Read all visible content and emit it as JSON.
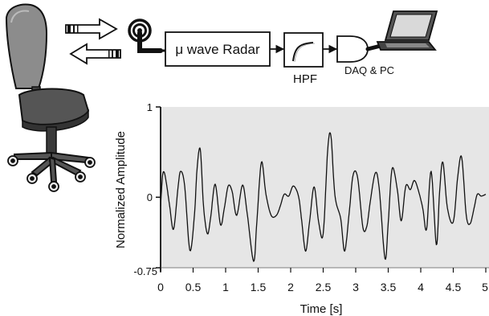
{
  "diagram": {
    "radar_label": "μ wave Radar",
    "filter_label": "HPF",
    "daq_label": "DAQ & PC"
  },
  "chart_data": {
    "type": "line",
    "xlabel": "Time [s]",
    "ylabel": "Normalized Amplitude",
    "xlim": [
      0,
      5
    ],
    "ylim": [
      -0.75,
      1
    ],
    "x_ticks": [
      "0",
      "0.5",
      "1",
      "1.5",
      "2",
      "2.5",
      "3",
      "3.5",
      "4",
      "4.5",
      "5"
    ],
    "y_ticks": [
      "1",
      "0",
      "-0.75"
    ],
    "grid": false,
    "series": [
      {
        "x": [
          0,
          0.03,
          0.06,
          0.1,
          0.14,
          0.2,
          0.27,
          0.31,
          0.37,
          0.45,
          0.52,
          0.56,
          0.61,
          0.66,
          0.72,
          0.77,
          0.84,
          0.92,
          0.98,
          1.04,
          1.1,
          1.17,
          1.26,
          1.33,
          1.43,
          1.48,
          1.55,
          1.62,
          1.7,
          1.78,
          1.84,
          1.9,
          1.97,
          2.04,
          2.12,
          2.17,
          2.23,
          2.29,
          2.36,
          2.43,
          2.5,
          2.57,
          2.62,
          2.68,
          2.77,
          2.83,
          2.9,
          2.96,
          3.03,
          3.11,
          3.17,
          3.22,
          3.3,
          3.36,
          3.45,
          3.5,
          3.56,
          3.64,
          3.7,
          3.77,
          3.84,
          3.9,
          3.96,
          4.03,
          4.09,
          4.16,
          4.24,
          4.29,
          4.34,
          4.41,
          4.5,
          4.57,
          4.63,
          4.7,
          4.76,
          4.82,
          4.87,
          4.93,
          5.0
        ],
        "y": [
          -0.08,
          0.25,
          0.28,
          0.12,
          -0.08,
          -0.33,
          0.14,
          0.3,
          0.14,
          -0.56,
          -0.18,
          0.32,
          0.54,
          -0.08,
          -0.38,
          -0.2,
          0.16,
          -0.28,
          -0.1,
          0.14,
          0.08,
          -0.18,
          0.15,
          -0.15,
          -0.68,
          -0.25,
          0.4,
          0.05,
          -0.18,
          -0.18,
          -0.08,
          0.05,
          0.03,
          0.14,
          0.03,
          -0.24,
          -0.57,
          -0.25,
          0.13,
          -0.25,
          -0.38,
          0.54,
          0.68,
          0.04,
          -0.22,
          -0.57,
          -0.15,
          0.26,
          0.23,
          -0.31,
          -0.3,
          -0.05,
          0.28,
          0.12,
          -0.65,
          -0.26,
          0.33,
          0.1,
          -0.24,
          0.14,
          0.1,
          0.2,
          0.1,
          -0.1,
          -0.33,
          0.3,
          -0.5,
          0.08,
          0.4,
          -0.1,
          -0.25,
          0.25,
          0.45,
          -0.18,
          -0.27,
          -0.1,
          0.05,
          0.03,
          0.05
        ]
      }
    ]
  }
}
